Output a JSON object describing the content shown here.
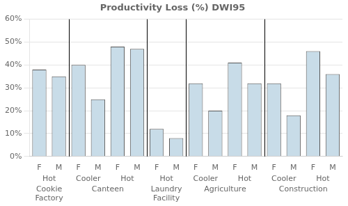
{
  "chart_data": {
    "type": "bar",
    "title": "Productivity Loss (%) DWI95",
    "categories": [
      "F",
      "M",
      "F",
      "M",
      "F",
      "M",
      "F",
      "M",
      "F",
      "M",
      "F",
      "M",
      "F",
      "M",
      "F",
      "M"
    ],
    "values": [
      38,
      35,
      40,
      25,
      48,
      47,
      12,
      8,
      32,
      20,
      41,
      32,
      32,
      18,
      46,
      36
    ],
    "color": "#c8dce8",
    "sectors": [
      {
        "name": "Cookie\nFactory",
        "groups": [
          "Hot"
        ]
      },
      {
        "name": "Canteen",
        "groups": [
          "Cooler",
          "Hot"
        ]
      },
      {
        "name": "Laundry\nFacility",
        "groups": [
          "Hot"
        ]
      },
      {
        "name": "Agriculture",
        "groups": [
          "Cooler",
          "Hot"
        ]
      },
      {
        "name": "Construction",
        "groups": [
          "Cooler",
          "Hot"
        ]
      }
    ],
    "ylim": [
      0,
      60
    ],
    "yticks": [
      {
        "value": 0,
        "label": "0%"
      },
      {
        "value": 10,
        "label": "10%"
      },
      {
        "value": 20,
        "label": "20%"
      },
      {
        "value": 30,
        "label": "30%"
      },
      {
        "value": 40,
        "label": "40%"
      },
      {
        "value": 50,
        "label": "50%"
      },
      {
        "value": 60,
        "label": "60%"
      }
    ],
    "grid": true
  }
}
